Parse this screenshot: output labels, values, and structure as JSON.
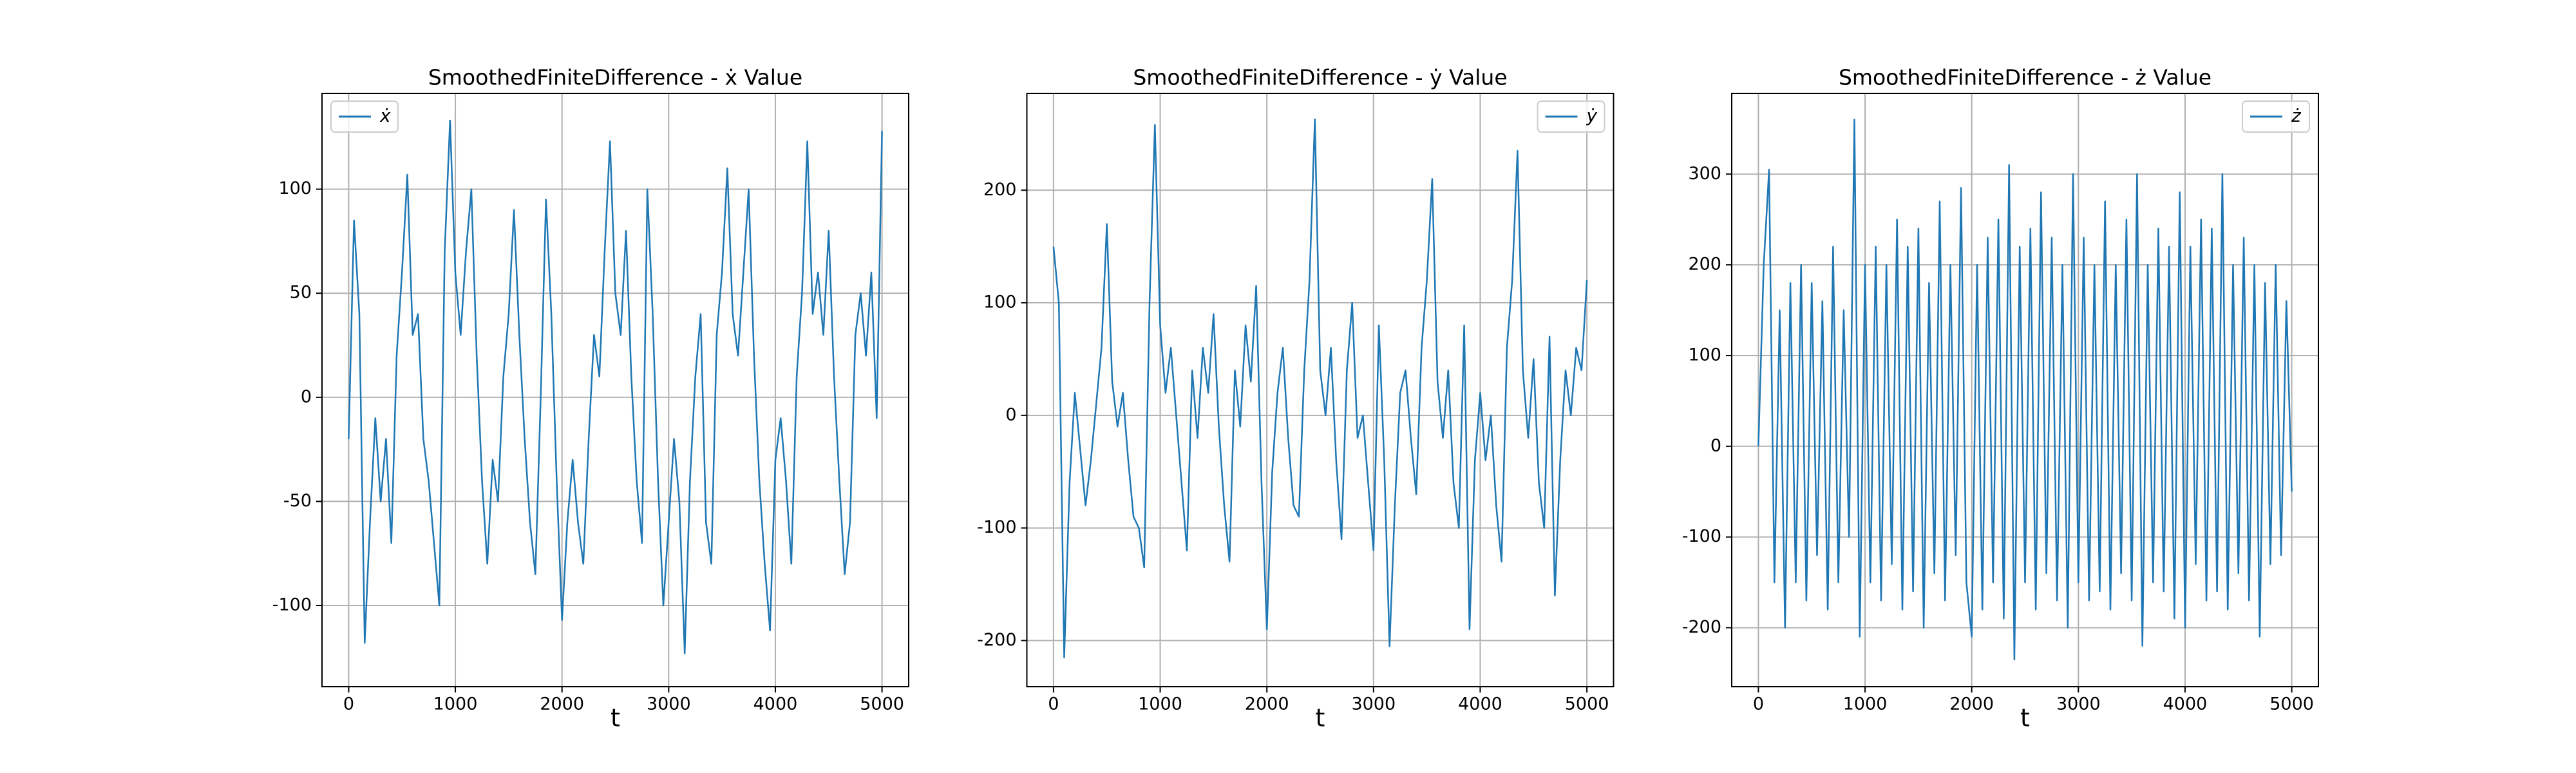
{
  "chart_data": [
    {
      "type": "line",
      "title": "SmoothedFiniteDifference - ẋ Value",
      "xlabel": "t",
      "legend": "upper left",
      "grid": true,
      "xlim": [
        -250,
        5250
      ],
      "xticks": [
        0,
        1000,
        2000,
        3000,
        4000,
        5000
      ],
      "ylim": [
        -139,
        146
      ],
      "yticks": [
        -100,
        -50,
        0,
        50,
        100
      ],
      "x": [
        0,
        50,
        100,
        150,
        200,
        250,
        300,
        350,
        400,
        450,
        500,
        550,
        600,
        650,
        700,
        750,
        800,
        850,
        900,
        950,
        1000,
        1050,
        1100,
        1150,
        1200,
        1250,
        1300,
        1350,
        1400,
        1450,
        1500,
        1550,
        1600,
        1650,
        1700,
        1750,
        1800,
        1850,
        1900,
        1950,
        2000,
        2050,
        2100,
        2150,
        2200,
        2250,
        2300,
        2350,
        2400,
        2450,
        2500,
        2550,
        2600,
        2650,
        2700,
        2750,
        2800,
        2850,
        2900,
        2950,
        3000,
        3050,
        3100,
        3150,
        3200,
        3250,
        3300,
        3350,
        3400,
        3450,
        3500,
        3550,
        3600,
        3650,
        3700,
        3750,
        3800,
        3850,
        3900,
        3950,
        4000,
        4050,
        4100,
        4150,
        4200,
        4250,
        4300,
        4350,
        4400,
        4450,
        4500,
        4550,
        4600,
        4650,
        4700,
        4750,
        4800,
        4850,
        4900,
        4950,
        5000
      ],
      "series": [
        {
          "name": "ẋ",
          "color": "#1f77b4",
          "values": [
            -20,
            85,
            40,
            -118,
            -60,
            -10,
            -50,
            -20,
            -70,
            20,
            60,
            107,
            30,
            40,
            -20,
            -40,
            -70,
            -100,
            70,
            133,
            60,
            30,
            70,
            100,
            20,
            -40,
            -80,
            -30,
            -50,
            10,
            40,
            90,
            30,
            -20,
            -60,
            -85,
            0,
            95,
            40,
            -40,
            -107,
            -60,
            -30,
            -60,
            -80,
            -20,
            30,
            10,
            70,
            123,
            50,
            30,
            80,
            10,
            -40,
            -70,
            100,
            40,
            -40,
            -100,
            -60,
            -20,
            -50,
            -123,
            -40,
            10,
            40,
            -60,
            -80,
            30,
            60,
            110,
            40,
            20,
            60,
            100,
            20,
            -40,
            -80,
            -112,
            -30,
            -10,
            -40,
            -80,
            10,
            50,
            123,
            40,
            60,
            30,
            80,
            10,
            -40,
            -85,
            -60,
            30,
            50,
            20,
            60,
            -10,
            128
          ]
        }
      ]
    },
    {
      "type": "line",
      "title": "SmoothedFiniteDifference - ẏ Value",
      "xlabel": "t",
      "legend": "upper right",
      "grid": true,
      "xlim": [
        -250,
        5250
      ],
      "xticks": [
        0,
        1000,
        2000,
        3000,
        4000,
        5000
      ],
      "ylim": [
        -241,
        286
      ],
      "yticks": [
        -200,
        -100,
        0,
        100,
        200
      ],
      "x": [
        0,
        50,
        100,
        150,
        200,
        250,
        300,
        350,
        400,
        450,
        500,
        550,
        600,
        650,
        700,
        750,
        800,
        850,
        900,
        950,
        1000,
        1050,
        1100,
        1150,
        1200,
        1250,
        1300,
        1350,
        1400,
        1450,
        1500,
        1550,
        1600,
        1650,
        1700,
        1750,
        1800,
        1850,
        1900,
        1950,
        2000,
        2050,
        2100,
        2150,
        2200,
        2250,
        2300,
        2350,
        2400,
        2450,
        2500,
        2550,
        2600,
        2650,
        2700,
        2750,
        2800,
        2850,
        2900,
        2950,
        3000,
        3050,
        3100,
        3150,
        3200,
        3250,
        3300,
        3350,
        3400,
        3450,
        3500,
        3550,
        3600,
        3650,
        3700,
        3750,
        3800,
        3850,
        3900,
        3950,
        4000,
        4050,
        4100,
        4150,
        4200,
        4250,
        4300,
        4350,
        4400,
        4450,
        4500,
        4550,
        4600,
        4650,
        4700,
        4750,
        4800,
        4850,
        4900,
        4950,
        5000
      ],
      "series": [
        {
          "name": "ẏ",
          "color": "#1f77b4",
          "values": [
            150,
            100,
            -215,
            -60,
            20,
            -30,
            -80,
            -40,
            10,
            60,
            170,
            30,
            -10,
            20,
            -40,
            -90,
            -100,
            -135,
            100,
            258,
            80,
            20,
            60,
            0,
            -60,
            -120,
            40,
            -20,
            60,
            20,
            90,
            -10,
            -80,
            -130,
            40,
            -10,
            80,
            30,
            115,
            -60,
            -190,
            -50,
            20,
            60,
            -20,
            -80,
            -90,
            40,
            120,
            263,
            40,
            0,
            60,
            -40,
            -110,
            40,
            100,
            -20,
            0,
            -60,
            -120,
            80,
            -40,
            -205,
            -80,
            20,
            40,
            -20,
            -70,
            60,
            120,
            210,
            30,
            -20,
            40,
            -60,
            -100,
            80,
            -190,
            -40,
            20,
            -40,
            0,
            -80,
            -130,
            60,
            120,
            235,
            40,
            -20,
            50,
            -60,
            -100,
            70,
            -160,
            -40,
            40,
            0,
            60,
            40,
            120
          ]
        }
      ]
    },
    {
      "type": "line",
      "title": "SmoothedFiniteDifference - ż Value",
      "xlabel": "t",
      "legend": "upper right",
      "grid": true,
      "xlim": [
        -250,
        5250
      ],
      "xticks": [
        0,
        1000,
        2000,
        3000,
        4000,
        5000
      ],
      "ylim": [
        -265,
        389
      ],
      "yticks": [
        -200,
        -100,
        0,
        100,
        200,
        300
      ],
      "x": [
        0,
        50,
        100,
        150,
        200,
        250,
        300,
        350,
        400,
        450,
        500,
        550,
        600,
        650,
        700,
        750,
        800,
        850,
        900,
        950,
        1000,
        1050,
        1100,
        1150,
        1200,
        1250,
        1300,
        1350,
        1400,
        1450,
        1500,
        1550,
        1600,
        1650,
        1700,
        1750,
        1800,
        1850,
        1900,
        1950,
        2000,
        2050,
        2100,
        2150,
        2200,
        2250,
        2300,
        2350,
        2400,
        2450,
        2500,
        2550,
        2600,
        2650,
        2700,
        2750,
        2800,
        2850,
        2900,
        2950,
        3000,
        3050,
        3100,
        3150,
        3200,
        3250,
        3300,
        3350,
        3400,
        3450,
        3500,
        3550,
        3600,
        3650,
        3700,
        3750,
        3800,
        3850,
        3900,
        3950,
        4000,
        4050,
        4100,
        4150,
        4200,
        4250,
        4300,
        4350,
        4400,
        4450,
        4500,
        4550,
        4600,
        4650,
        4700,
        4750,
        4800,
        4850,
        4900,
        4950,
        5000
      ],
      "series": [
        {
          "name": "ż",
          "color": "#1f77b4",
          "values": [
            0,
            200,
            305,
            -150,
            150,
            -200,
            180,
            -150,
            200,
            -170,
            180,
            -120,
            160,
            -180,
            220,
            -150,
            150,
            -100,
            360,
            -210,
            200,
            -150,
            220,
            -170,
            200,
            -130,
            250,
            -180,
            220,
            -160,
            240,
            -200,
            180,
            -140,
            270,
            -170,
            200,
            -120,
            285,
            -150,
            -210,
            200,
            -180,
            230,
            -150,
            250,
            -190,
            310,
            -235,
            220,
            -150,
            240,
            -180,
            280,
            -140,
            230,
            -170,
            200,
            -200,
            300,
            -150,
            230,
            -170,
            200,
            -160,
            270,
            -180,
            200,
            -140,
            250,
            -170,
            300,
            -220,
            200,
            -150,
            240,
            -160,
            220,
            -190,
            280,
            -200,
            220,
            -130,
            250,
            -170,
            240,
            -160,
            300,
            -180,
            200,
            -140,
            230,
            -170,
            200,
            -210,
            180,
            -130,
            200,
            -120,
            160,
            -50
          ]
        }
      ]
    }
  ]
}
